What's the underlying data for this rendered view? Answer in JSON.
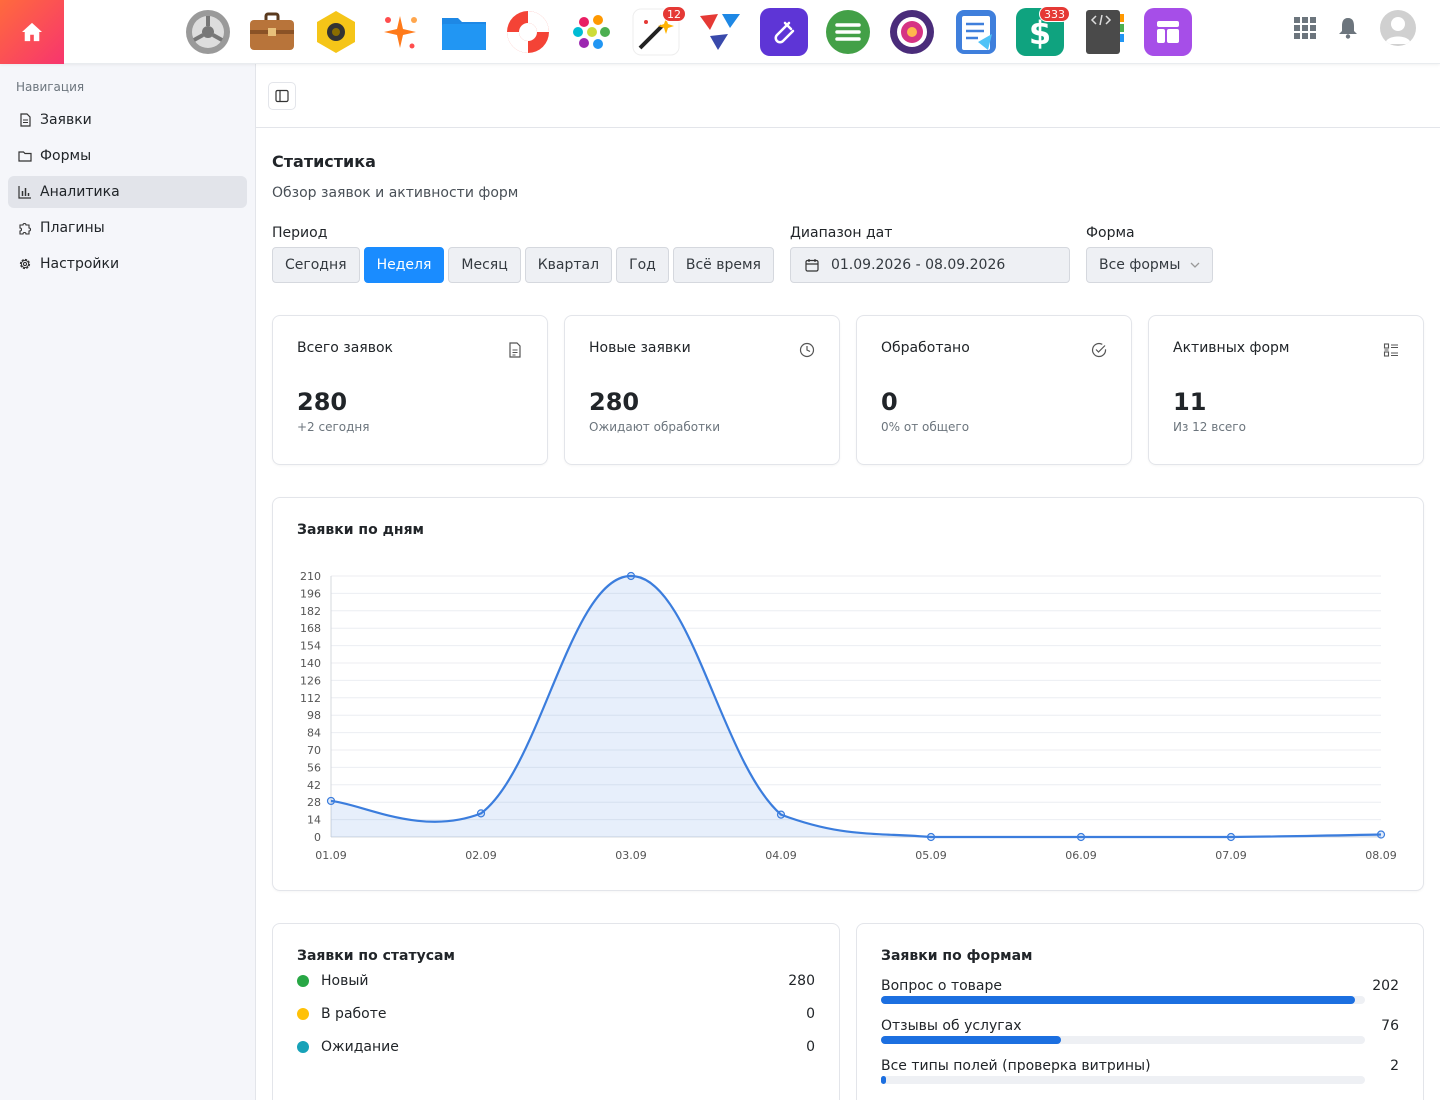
{
  "topbar": {
    "apps": [
      {
        "name": "settings-app",
        "badge": ""
      },
      {
        "name": "briefcase-app",
        "badge": ""
      },
      {
        "name": "camera-app",
        "badge": ""
      },
      {
        "name": "sparkle-app",
        "badge": ""
      },
      {
        "name": "files-app",
        "badge": ""
      },
      {
        "name": "help-app",
        "badge": ""
      },
      {
        "name": "color-app",
        "badge": ""
      },
      {
        "name": "magic-app",
        "badge": "12"
      },
      {
        "name": "planes-app",
        "badge": ""
      },
      {
        "name": "clip-app",
        "badge": ""
      },
      {
        "name": "menu-app",
        "badge": ""
      },
      {
        "name": "photo-app",
        "badge": ""
      },
      {
        "name": "tasks-app",
        "badge": ""
      },
      {
        "name": "money-app",
        "badge": "333"
      },
      {
        "name": "code-app",
        "badge": ""
      },
      {
        "name": "widgets-app",
        "badge": ""
      }
    ]
  },
  "sidebar": {
    "heading": "Навигация",
    "items": [
      {
        "label": "Заявки",
        "icon": "document-icon"
      },
      {
        "label": "Формы",
        "icon": "folder-icon"
      },
      {
        "label": "Аналитика",
        "icon": "bar-chart-icon",
        "active": true
      },
      {
        "label": "Плагины",
        "icon": "puzzle-icon"
      },
      {
        "label": "Настройки",
        "icon": "gear-icon"
      }
    ]
  },
  "page": {
    "title": "Статистика",
    "subtitle": "Обзор заявок и активности форм"
  },
  "filters": {
    "period_label": "Период",
    "periods": [
      "Сегодня",
      "Неделя",
      "Месяц",
      "Квартал",
      "Год",
      "Всё время"
    ],
    "active_period": "Неделя",
    "date_label": "Диапазон дат",
    "date_value": "01.09.2026 - 08.09.2026",
    "form_label": "Форма",
    "form_value": "Все формы"
  },
  "stats": [
    {
      "title": "Всего заявок",
      "value": "280",
      "note": "+2 сегодня",
      "icon": "document-icon"
    },
    {
      "title": "Новые заявки",
      "value": "280",
      "note": "Ожидают обработки",
      "icon": "clock-icon"
    },
    {
      "title": "Обработано",
      "value": "0",
      "note": "0% от общего",
      "icon": "check-circle-icon"
    },
    {
      "title": "Активных форм",
      "value": "11",
      "note": "Из 12 всего",
      "icon": "list-icon"
    }
  ],
  "chart_data": {
    "type": "area",
    "title": "Заявки по дням",
    "categories": [
      "01.09",
      "02.09",
      "03.09",
      "04.09",
      "05.09",
      "06.09",
      "07.09",
      "08.09"
    ],
    "values": [
      29,
      19,
      210,
      18,
      0,
      0,
      0,
      2
    ],
    "yticks": [
      0,
      14,
      28,
      42,
      56,
      70,
      84,
      98,
      112,
      126,
      140,
      154,
      168,
      182,
      196,
      210
    ],
    "ylim": [
      0,
      210
    ],
    "grid": true,
    "color": "#3b7ddd"
  },
  "statuses": {
    "title": "Заявки по статусам",
    "items": [
      {
        "name": "Новый",
        "count": "280",
        "color": "#28a745"
      },
      {
        "name": "В работе",
        "count": "0",
        "color": "#ffc107"
      },
      {
        "name": "Ожидание",
        "count": "0",
        "color": "#17a2b8"
      }
    ]
  },
  "forms": {
    "title": "Заявки по формам",
    "items": [
      {
        "name": "Вопрос о товаре",
        "count": "202",
        "fraction": 1.0
      },
      {
        "name": "Отзывы об услугах",
        "count": "76",
        "fraction": 0.38
      },
      {
        "name": "Все типы полей (проверка витрины)",
        "count": "2",
        "fraction": 0.01
      }
    ]
  }
}
